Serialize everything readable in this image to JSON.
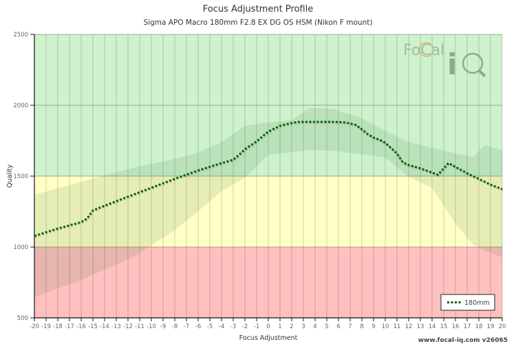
{
  "chart_data": {
    "type": "line",
    "title": "Focus Adjustment Profile",
    "subtitle": "Sigma APO Macro 180mm F2.8 EX DG OS HSM (Nikon F mount)",
    "xlabel": "Focus Adjustment",
    "ylabel": "Quality",
    "xlim": [
      -20,
      20
    ],
    "ylim": [
      500,
      2500
    ],
    "x_ticks": [
      -20,
      -19,
      -18,
      -17,
      -16,
      -15,
      -14,
      -13,
      -12,
      -11,
      -10,
      -9,
      -8,
      -7,
      -6,
      -5,
      -4,
      -3,
      -2,
      -1,
      0,
      1,
      2,
      3,
      4,
      5,
      6,
      7,
      8,
      9,
      10,
      11,
      12,
      13,
      14,
      15,
      16,
      17,
      18,
      19,
      20
    ],
    "y_ticks": [
      500,
      1000,
      1500,
      2000,
      2500
    ],
    "grid": true,
    "zones": [
      {
        "name": "good",
        "from": 1500,
        "to": 2500,
        "color": "#cdf2cd"
      },
      {
        "name": "fair",
        "from": 1000,
        "to": 1500,
        "color": "#ffffc6"
      },
      {
        "name": "poor",
        "from": 500,
        "to": 1000,
        "color": "#ffc0c0"
      }
    ],
    "series": [
      {
        "name": "180mm",
        "color": "#006400",
        "style": "dotted",
        "x": [
          -20,
          -18,
          -16,
          -15.5,
          -15,
          -14,
          -12,
          -10,
          -8,
          -6,
          -4,
          -3,
          -2.5,
          -2,
          -1,
          0,
          1,
          2,
          2.5,
          3,
          4,
          5,
          6,
          6.5,
          7,
          7.5,
          8,
          8.5,
          9,
          9.5,
          10,
          11,
          11.5,
          12,
          13,
          14,
          14.5,
          15,
          15.4,
          16,
          17,
          18,
          19,
          20
        ],
        "values": [
          1078,
          1130,
          1175,
          1200,
          1258,
          1291,
          1355,
          1418,
          1481,
          1540,
          1592,
          1615,
          1650,
          1690,
          1745,
          1815,
          1855,
          1875,
          1882,
          1883,
          1883,
          1883,
          1882,
          1879,
          1872,
          1860,
          1830,
          1796,
          1772,
          1757,
          1735,
          1660,
          1597,
          1578,
          1555,
          1525,
          1510,
          1555,
          1592,
          1565,
          1520,
          1480,
          1440,
          1408
        ]
      }
    ],
    "confidence_band": {
      "x": [
        -20,
        -16,
        -11.5,
        -8,
        -6,
        -4,
        -2,
        0,
        2,
        3.5,
        5.5,
        8,
        10,
        12,
        14,
        16,
        17.5,
        18.5,
        20
      ],
      "upper": [
        1369,
        1460,
        1560,
        1620,
        1665,
        1740,
        1854,
        1880,
        1893,
        1980,
        1975,
        1908,
        1820,
        1740,
        1699,
        1660,
        1636,
        1718,
        1684
      ],
      "lower": [
        646,
        767,
        932,
        1120,
        1252,
        1393,
        1490,
        1650,
        1670,
        1684,
        1679,
        1655,
        1631,
        1495,
        1417,
        1165,
        1019,
        975,
        927
      ]
    },
    "legend": {
      "position": "bottom-right",
      "entries": [
        "180mm"
      ]
    }
  },
  "footer": "www.focal-iq.com  v26065",
  "logo": {
    "word1": "FoCal",
    "word2": "iQ"
  }
}
